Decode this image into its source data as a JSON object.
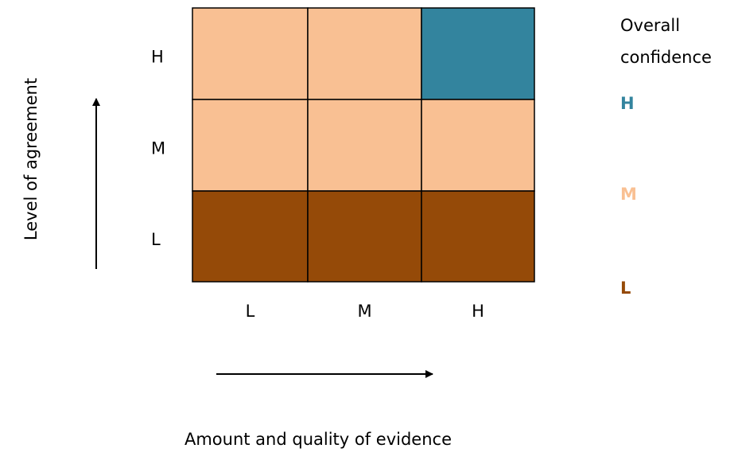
{
  "diagram": {
    "y_axis_label": "Level of agreement",
    "x_axis_label": "Amount and quality of evidence",
    "row_labels": [
      "H",
      "M",
      "L"
    ],
    "column_labels": [
      "L",
      "M",
      "H"
    ],
    "cell_colors": [
      [
        "#F9C093",
        "#F9C093",
        "#33849E"
      ],
      [
        "#F9C093",
        "#F9C093",
        "#F9C093"
      ],
      [
        "#954A08",
        "#954A08",
        "#954A08"
      ]
    ],
    "legend": {
      "title_lines": [
        "Overall",
        "confidence"
      ],
      "items": [
        {
          "label": "H",
          "color": "#33849E"
        },
        {
          "label": "M",
          "color": "#F9C093"
        },
        {
          "label": "L",
          "color": "#954A08"
        }
      ]
    }
  }
}
